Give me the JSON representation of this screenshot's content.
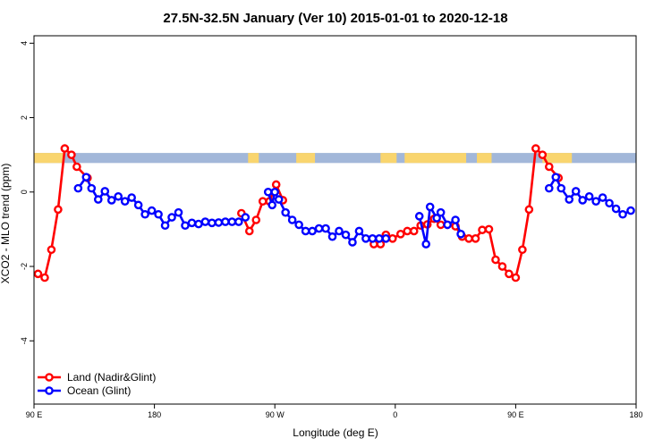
{
  "chart_data": {
    "type": "line",
    "title": "27.5N-32.5N January (Ver 10)   2015-01-01 to 2020-12-18",
    "xlabel": "Longitude (deg E)",
    "ylabel": "XCO2 - MLO trend (ppm)",
    "xlim": [
      90,
      540
    ],
    "ylim": [
      -5.7,
      4.2
    ],
    "x_ticks": [
      {
        "value": 90,
        "label": "90 E"
      },
      {
        "value": 180,
        "label": "180"
      },
      {
        "value": 270,
        "label": "90 W"
      },
      {
        "value": 360,
        "label": "0"
      },
      {
        "value": 450,
        "label": "90 E"
      },
      {
        "value": 540,
        "label": "180"
      }
    ],
    "y_ticks": [
      {
        "value": 4,
        "label": "4"
      },
      {
        "value": 2,
        "label": "2"
      },
      {
        "value": 0,
        "label": "0"
      },
      {
        "value": -2,
        "label": "-2"
      },
      {
        "value": -4,
        "label": "-4"
      }
    ],
    "land_ocean_band": {
      "y_range": [
        0.78,
        1.05
      ],
      "land_color": "#f9d56e",
      "ocean_color": "#a2b7d9",
      "land_segments": [
        [
          90,
          112
        ],
        [
          250,
          258
        ],
        [
          286,
          300
        ],
        [
          349,
          361
        ],
        [
          367,
          413
        ],
        [
          421,
          432
        ],
        [
          470,
          492
        ]
      ]
    },
    "legend_position": "bottom-left",
    "series": [
      {
        "name": "Land (Nadir&Glint)",
        "color": "#ff0000",
        "points": [
          [
            93,
            -2.2
          ],
          [
            98,
            -2.3
          ],
          [
            103,
            -1.55
          ],
          [
            108,
            -0.47
          ],
          [
            113,
            1.17
          ],
          [
            118,
            1.0
          ],
          [
            122,
            0.68
          ],
          [
            130,
            0.38
          ],
          [
            245,
            -0.57
          ],
          [
            251,
            -1.05
          ],
          [
            256,
            -0.75
          ],
          [
            261,
            -0.25
          ],
          [
            266,
            -0.25
          ],
          [
            271,
            0.2
          ],
          [
            276,
            -0.22
          ],
          [
            344,
            -1.4
          ],
          [
            349,
            -1.4
          ],
          [
            353,
            -1.15
          ],
          [
            358,
            -1.25
          ],
          [
            364,
            -1.13
          ],
          [
            369,
            -1.05
          ],
          [
            374,
            -1.05
          ],
          [
            379,
            -0.9
          ],
          [
            384,
            -0.87
          ],
          [
            389,
            -0.72
          ],
          [
            394,
            -0.88
          ],
          [
            399,
            -0.88
          ],
          [
            405,
            -0.92
          ],
          [
            410,
            -1.2
          ],
          [
            415,
            -1.25
          ],
          [
            420,
            -1.25
          ],
          [
            425,
            -1.02
          ],
          [
            430,
            -1.0
          ],
          [
            435,
            -1.82
          ],
          [
            440,
            -2.0
          ],
          [
            445,
            -2.2
          ],
          [
            450,
            -2.3
          ],
          [
            455,
            -1.55
          ],
          [
            460,
            -0.47
          ],
          [
            465,
            1.17
          ],
          [
            470,
            1.0
          ],
          [
            475,
            0.68
          ],
          [
            482,
            0.38
          ]
        ]
      },
      {
        "name": "Ocean (Glint)",
        "color": "#0000ff",
        "points": [
          [
            123,
            0.1
          ],
          [
            129,
            0.4
          ],
          [
            133,
            0.1
          ],
          [
            138,
            -0.2
          ],
          [
            143,
            0.02
          ],
          [
            148,
            -0.22
          ],
          [
            153,
            -0.12
          ],
          [
            158,
            -0.25
          ],
          [
            163,
            -0.15
          ],
          [
            168,
            -0.35
          ],
          [
            173,
            -0.6
          ],
          [
            178,
            -0.5
          ],
          [
            183,
            -0.6
          ],
          [
            188,
            -0.9
          ],
          [
            193,
            -0.68
          ],
          [
            198,
            -0.55
          ],
          [
            203,
            -0.9
          ],
          [
            208,
            -0.83
          ],
          [
            213,
            -0.86
          ],
          [
            218,
            -0.8
          ],
          [
            223,
            -0.83
          ],
          [
            228,
            -0.82
          ],
          [
            233,
            -0.8
          ],
          [
            238,
            -0.8
          ],
          [
            243,
            -0.8
          ],
          [
            248,
            -0.68
          ],
          [
            265,
            0.0
          ],
          [
            268,
            -0.35
          ],
          [
            270,
            0.0
          ],
          [
            273,
            -0.2
          ],
          [
            278,
            -0.55
          ],
          [
            283,
            -0.75
          ],
          [
            288,
            -0.88
          ],
          [
            293,
            -1.05
          ],
          [
            298,
            -1.05
          ],
          [
            303,
            -0.98
          ],
          [
            308,
            -0.98
          ],
          [
            313,
            -1.2
          ],
          [
            318,
            -1.05
          ],
          [
            323,
            -1.15
          ],
          [
            328,
            -1.35
          ],
          [
            333,
            -1.05
          ],
          [
            338,
            -1.25
          ],
          [
            343,
            -1.25
          ],
          [
            348,
            -1.25
          ],
          [
            353,
            -1.25
          ],
          [
            378,
            -0.65
          ],
          [
            383,
            -1.4
          ],
          [
            386,
            -0.4
          ],
          [
            391,
            -0.7
          ],
          [
            394,
            -0.55
          ],
          [
            399,
            -0.88
          ],
          [
            405,
            -0.75
          ],
          [
            409,
            -1.13
          ],
          [
            475,
            0.1
          ],
          [
            480,
            0.4
          ],
          [
            484,
            0.1
          ],
          [
            490,
            -0.2
          ],
          [
            495,
            0.02
          ],
          [
            500,
            -0.22
          ],
          [
            505,
            -0.12
          ],
          [
            510,
            -0.25
          ],
          [
            515,
            -0.15
          ],
          [
            520,
            -0.3
          ],
          [
            525,
            -0.45
          ],
          [
            530,
            -0.6
          ],
          [
            536,
            -0.5
          ]
        ]
      }
    ]
  }
}
